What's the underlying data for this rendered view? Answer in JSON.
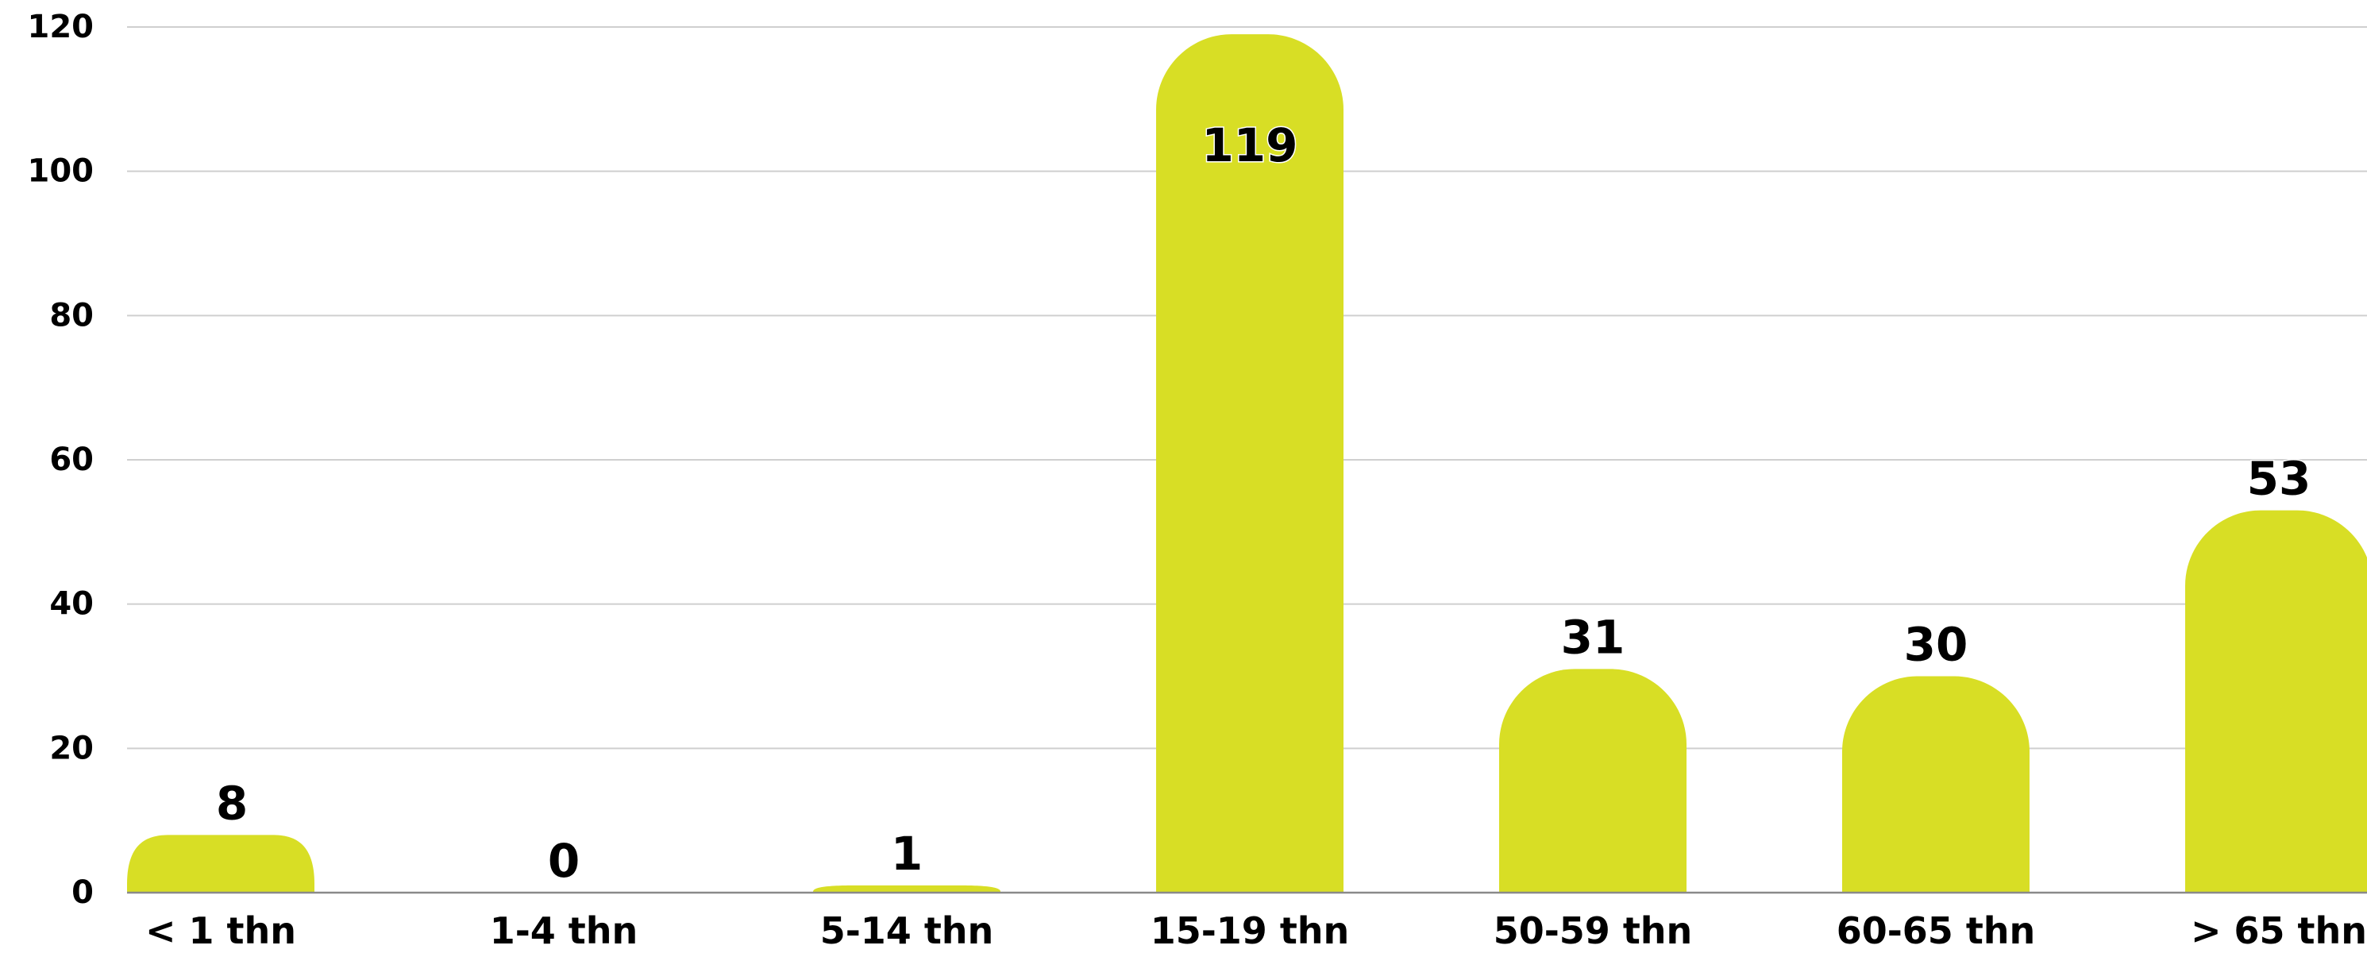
{
  "chart_data": {
    "type": "bar",
    "categories": [
      "< 1 thn",
      "1-4 thn",
      "5-14 thn",
      "15-19 thn",
      "50-59 thn",
      "60-65 thn",
      "> 65 thn"
    ],
    "values": [
      8,
      0,
      1,
      119,
      31,
      30,
      53
    ],
    "data_labels": [
      "8",
      "0",
      "1",
      "119",
      "31",
      "30",
      "53"
    ],
    "yticks": [
      "0",
      "20",
      "40",
      "60",
      "80",
      "100",
      "120"
    ],
    "ylim": [
      0,
      120
    ],
    "grid": true,
    "legend": "none",
    "title": "",
    "xlabel": "",
    "ylabel": "",
    "bar_color": "#d8de25"
  }
}
